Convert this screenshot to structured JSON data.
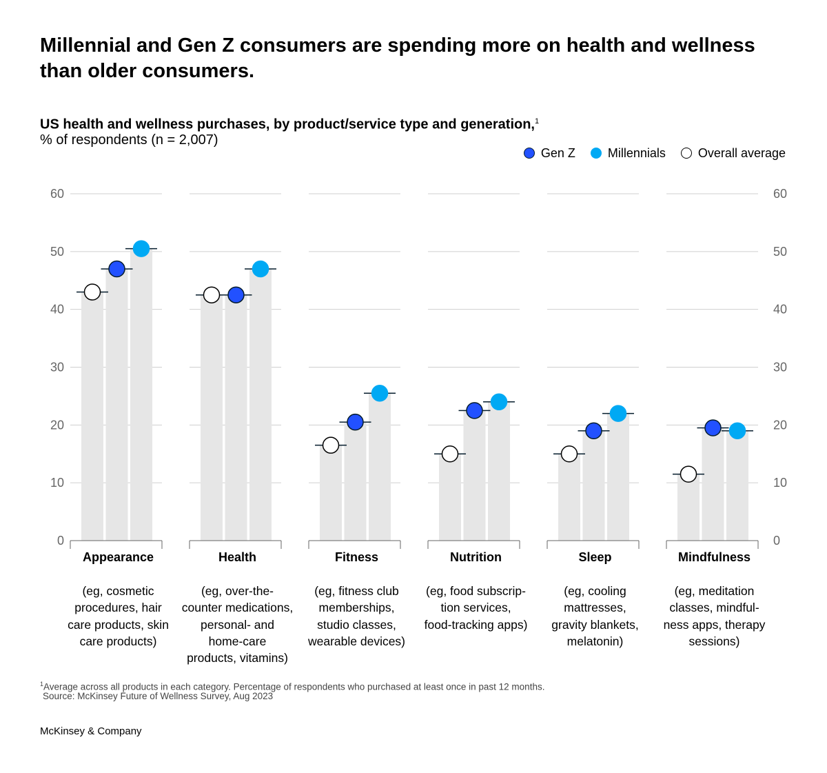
{
  "headline": "Millennial and Gen Z consumers are spending more on health and wellness than older consumers.",
  "subtitle": "US health and wellness purchases, by product/service type and generation,",
  "subtitle_footnote_marker": "1",
  "units": "% of respondents (n = 2,007)",
  "legend": [
    {
      "label": "Gen Z",
      "color": "#2251ff"
    },
    {
      "label": "Millennials",
      "color": "#00a9f4"
    },
    {
      "label": "Overall average",
      "color": "#ffffff"
    }
  ],
  "colors": {
    "bar": "#e6e6e6",
    "gridline": "#cfcfcf",
    "marker_line": "#051c2c"
  },
  "chart_data": {
    "type": "bar",
    "categories": [
      "Appearance",
      "Health",
      "Fitness",
      "Nutrition",
      "Sleep",
      "Mindfulness"
    ],
    "series": [
      {
        "name": "Overall average",
        "values": [
          43,
          42.5,
          16.5,
          15,
          15,
          11.5
        ]
      },
      {
        "name": "Gen Z",
        "values": [
          47,
          42.5,
          20.5,
          22.5,
          19,
          19.5
        ]
      },
      {
        "name": "Millennials",
        "values": [
          50.5,
          47,
          25.5,
          24,
          22,
          19
        ]
      }
    ],
    "ylim": [
      0,
      60
    ],
    "yticks": [
      "0",
      "10",
      "20",
      "30",
      "40",
      "50",
      "60"
    ],
    "grid": true,
    "legend_position": "top-right"
  },
  "descriptions": [
    "(eg, cosmetic\nprocedures, hair\ncare products, skin\ncare products)",
    "(eg, over-the-\ncounter medications,\npersonal- and\nhome-care\nproducts, vitamins)",
    "(eg, fitness club\nmemberships,\nstudio classes,\nwearable devices)",
    "(eg, food subscrip-\ntion services,\nfood-tracking apps)",
    "(eg, cooling\nmattresses,\ngravity blankets,\nmelatonin)",
    "(eg, meditation\nclasses, mindful-\nness apps, therapy\nsessions)"
  ],
  "footnote_marker": "1",
  "footnote": "Average across all products in each category. Percentage of respondents who purchased at least once in past 12 months.",
  "source": "Source: McKinsey Future of Wellness Survey, Aug 2023",
  "brand": "McKinsey & Company"
}
